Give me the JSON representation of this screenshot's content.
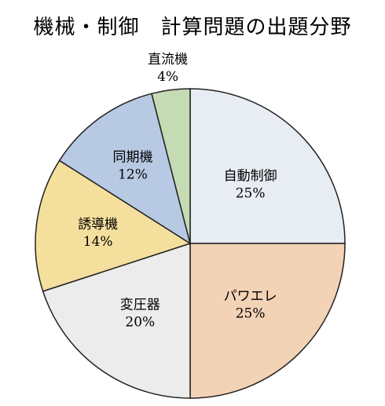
{
  "chart_data": {
    "type": "pie",
    "title": "機械・制御　計算問題の出題分野",
    "slices": [
      {
        "label": "自動制御",
        "value": 25,
        "value_label": "25%",
        "color": "#e7edf3"
      },
      {
        "label": "パワエレ",
        "value": 25,
        "value_label": "25%",
        "color": "#f3d3b6"
      },
      {
        "label": "変圧器",
        "value": 20,
        "value_label": "20%",
        "color": "#ececec"
      },
      {
        "label": "誘導機",
        "value": 14,
        "value_label": "14%",
        "color": "#f5df9d"
      },
      {
        "label": "同期機",
        "value": 12,
        "value_label": "12%",
        "color": "#b7c9e3"
      },
      {
        "label": "直流機",
        "value": 4,
        "value_label": "4%",
        "color": "#c5dbb3"
      }
    ],
    "start": "12 o'clock",
    "direction": "clockwise",
    "legend": "none"
  }
}
